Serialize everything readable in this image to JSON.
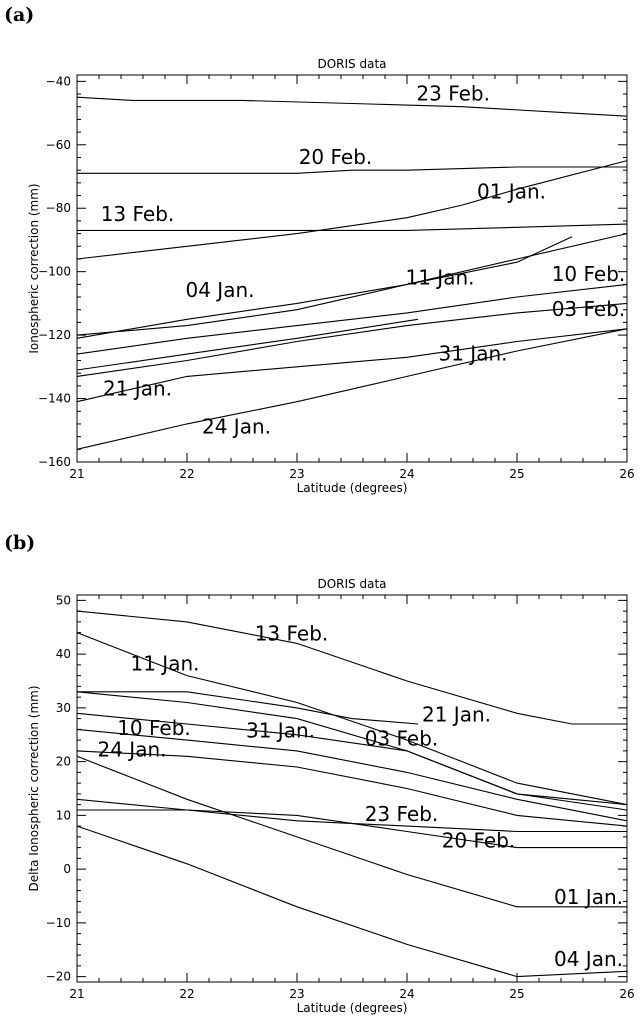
{
  "panels": [
    {
      "label": "(a)"
    },
    {
      "label": "(b)"
    }
  ],
  "chart_data": [
    {
      "type": "line",
      "title": "DORIS data",
      "xlabel": "Latitude (degrees)",
      "ylabel": "Ionospheric correction (mm)",
      "xlim": [
        21,
        26
      ],
      "ylim": [
        -160,
        -38
      ],
      "xticks": [
        21,
        22,
        23,
        24,
        25,
        26
      ],
      "yticks": [
        -160,
        -140,
        -120,
        -100,
        -80,
        -60,
        -40
      ],
      "series": [
        {
          "name": "23 Feb.",
          "x": [
            21,
            21.5,
            22.5,
            23.5,
            24.5,
            25.5,
            26
          ],
          "y": [
            -45,
            -46,
            -46,
            -47,
            -48,
            -50,
            -51
          ]
        },
        {
          "name": "20 Feb.",
          "x": [
            21,
            22,
            23,
            23.5,
            24,
            25,
            26
          ],
          "y": [
            -69,
            -69,
            -69,
            -68,
            -68,
            -67,
            -67
          ]
        },
        {
          "name": "01 Jan.",
          "x": [
            21,
            22,
            23,
            24,
            24.5,
            25,
            26
          ],
          "y": [
            -96,
            -92,
            -88,
            -83,
            -79,
            -74,
            -65
          ]
        },
        {
          "name": "13 Feb.",
          "x": [
            21,
            22,
            23,
            24,
            25,
            26
          ],
          "y": [
            -87,
            -87,
            -87,
            -87,
            -86,
            -85
          ]
        },
        {
          "name": "04 Jan.",
          "x": [
            21,
            22,
            23,
            24,
            25,
            25.5
          ],
          "y": [
            -121,
            -115,
            -110,
            -104,
            -97,
            -89
          ]
        },
        {
          "name": "11 Jan.",
          "x": [
            21,
            22,
            23,
            24,
            25,
            26
          ],
          "y": [
            -120,
            -117,
            -112,
            -104,
            -96,
            -88
          ]
        },
        {
          "name": "10 Feb.",
          "x": [
            21,
            22,
            23,
            24,
            25,
            26
          ],
          "y": [
            -126,
            -121,
            -117,
            -113,
            -108,
            -104
          ]
        },
        {
          "name": "03 Feb.",
          "x": [
            21,
            22,
            23,
            24,
            25,
            26
          ],
          "y": [
            -133,
            -128,
            -122,
            -117,
            -113,
            -110
          ]
        },
        {
          "name": "31 Jan.",
          "x": [
            21,
            22,
            23,
            24.1
          ],
          "y": [
            -131,
            -126,
            -121,
            -115
          ]
        },
        {
          "name": "21 Jan.",
          "x": [
            21,
            22,
            23,
            24,
            25,
            26
          ],
          "y": [
            -141,
            -133,
            -130,
            -127,
            -122,
            -118
          ]
        },
        {
          "name": "24 Jan.",
          "x": [
            21,
            22,
            23,
            24,
            25,
            26
          ],
          "y": [
            -156,
            -148,
            -141,
            -133,
            -125,
            -118
          ]
        }
      ],
      "annotations": [
        {
          "text": "23 Feb.",
          "x": 24.42,
          "y": -46
        },
        {
          "text": "20 Feb.",
          "x": 23.35,
          "y": -66
        },
        {
          "text": "01 Jan.",
          "x": 24.95,
          "y": -77
        },
        {
          "text": "13 Feb.",
          "x": 21.55,
          "y": -84
        },
        {
          "text": "04 Jan.",
          "x": 22.3,
          "y": -108
        },
        {
          "text": "11 Jan.",
          "x": 24.3,
          "y": -104
        },
        {
          "text": "10 Feb.",
          "x": 25.65,
          "y": -103
        },
        {
          "text": "03 Feb.",
          "x": 25.65,
          "y": -114
        },
        {
          "text": "31 Jan.",
          "x": 24.6,
          "y": -128
        },
        {
          "text": "21 Jan.",
          "x": 21.55,
          "y": -139
        },
        {
          "text": "24 Jan.",
          "x": 22.45,
          "y": -151
        }
      ]
    },
    {
      "type": "line",
      "title": "DORIS data",
      "xlabel": "Latitude (degrees)",
      "ylabel": "Delta Ionospheric correction (mm)",
      "xlim": [
        21,
        26
      ],
      "ylim": [
        -21,
        51
      ],
      "xticks": [
        21,
        22,
        23,
        24,
        25,
        26
      ],
      "yticks": [
        -20,
        -10,
        0,
        10,
        20,
        30,
        40,
        50
      ],
      "series": [
        {
          "name": "13 Feb.",
          "x": [
            21,
            22,
            23,
            24,
            25,
            25.5,
            26
          ],
          "y": [
            48,
            46,
            42,
            35,
            29,
            27,
            27
          ]
        },
        {
          "name": "11 Jan.",
          "x": [
            21,
            21.5,
            22,
            23,
            24,
            25,
            26
          ],
          "y": [
            44,
            40,
            36,
            31,
            24,
            16,
            12
          ]
        },
        {
          "name": "21 Jan.",
          "x": [
            21,
            22,
            23,
            23.5,
            24.1
          ],
          "y": [
            33,
            33,
            30,
            28,
            27
          ]
        },
        {
          "name": "31 Jan.",
          "x": [
            21,
            22,
            23,
            24,
            25,
            26
          ],
          "y": [
            33,
            31,
            28,
            22,
            14,
            12
          ]
        },
        {
          "name": "03 Feb.",
          "x": [
            21,
            22,
            23,
            24,
            25,
            26
          ],
          "y": [
            29,
            27,
            25,
            22,
            14,
            11
          ]
        },
        {
          "name": "10 Feb.",
          "x": [
            21,
            22,
            23,
            24,
            25,
            26
          ],
          "y": [
            26,
            24,
            22,
            18,
            13,
            9
          ]
        },
        {
          "name": "24 Jan.",
          "x": [
            21,
            22,
            23,
            24,
            25,
            26
          ],
          "y": [
            22,
            21,
            19,
            15,
            10,
            8
          ]
        },
        {
          "name": "23 Feb.",
          "x": [
            21,
            22,
            23,
            24,
            25,
            26
          ],
          "y": [
            13,
            11,
            9,
            8,
            7,
            7
          ]
        },
        {
          "name": "20 Feb.",
          "x": [
            21,
            22,
            23,
            24,
            25,
            26
          ],
          "y": [
            11,
            11,
            10,
            7,
            4,
            4
          ]
        },
        {
          "name": "01 Jan.",
          "x": [
            21,
            22,
            23,
            24,
            25,
            26
          ],
          "y": [
            21,
            13,
            6,
            -1,
            -7,
            -7
          ]
        },
        {
          "name": "04 Jan.",
          "x": [
            21,
            22,
            23,
            24,
            25,
            26
          ],
          "y": [
            8,
            1,
            -7,
            -14,
            -20,
            -19
          ]
        }
      ],
      "annotations": [
        {
          "text": "13 Feb.",
          "x": 22.95,
          "y": 42.5
        },
        {
          "text": "11 Jan.",
          "x": 21.8,
          "y": 37
        },
        {
          "text": "21 Jan.",
          "x": 24.45,
          "y": 27.5
        },
        {
          "text": "10 Feb.",
          "x": 21.7,
          "y": 25
        },
        {
          "text": "31 Jan.",
          "x": 22.85,
          "y": 24.5
        },
        {
          "text": "03 Feb.",
          "x": 23.95,
          "y": 23
        },
        {
          "text": "24 Jan.",
          "x": 21.5,
          "y": 21
        },
        {
          "text": "23 Feb.",
          "x": 23.95,
          "y": 9
        },
        {
          "text": "20 Feb.",
          "x": 24.65,
          "y": 4
        },
        {
          "text": "01 Jan.",
          "x": 25.65,
          "y": -6.5
        },
        {
          "text": "04 Jan.",
          "x": 25.65,
          "y": -18
        }
      ]
    }
  ]
}
